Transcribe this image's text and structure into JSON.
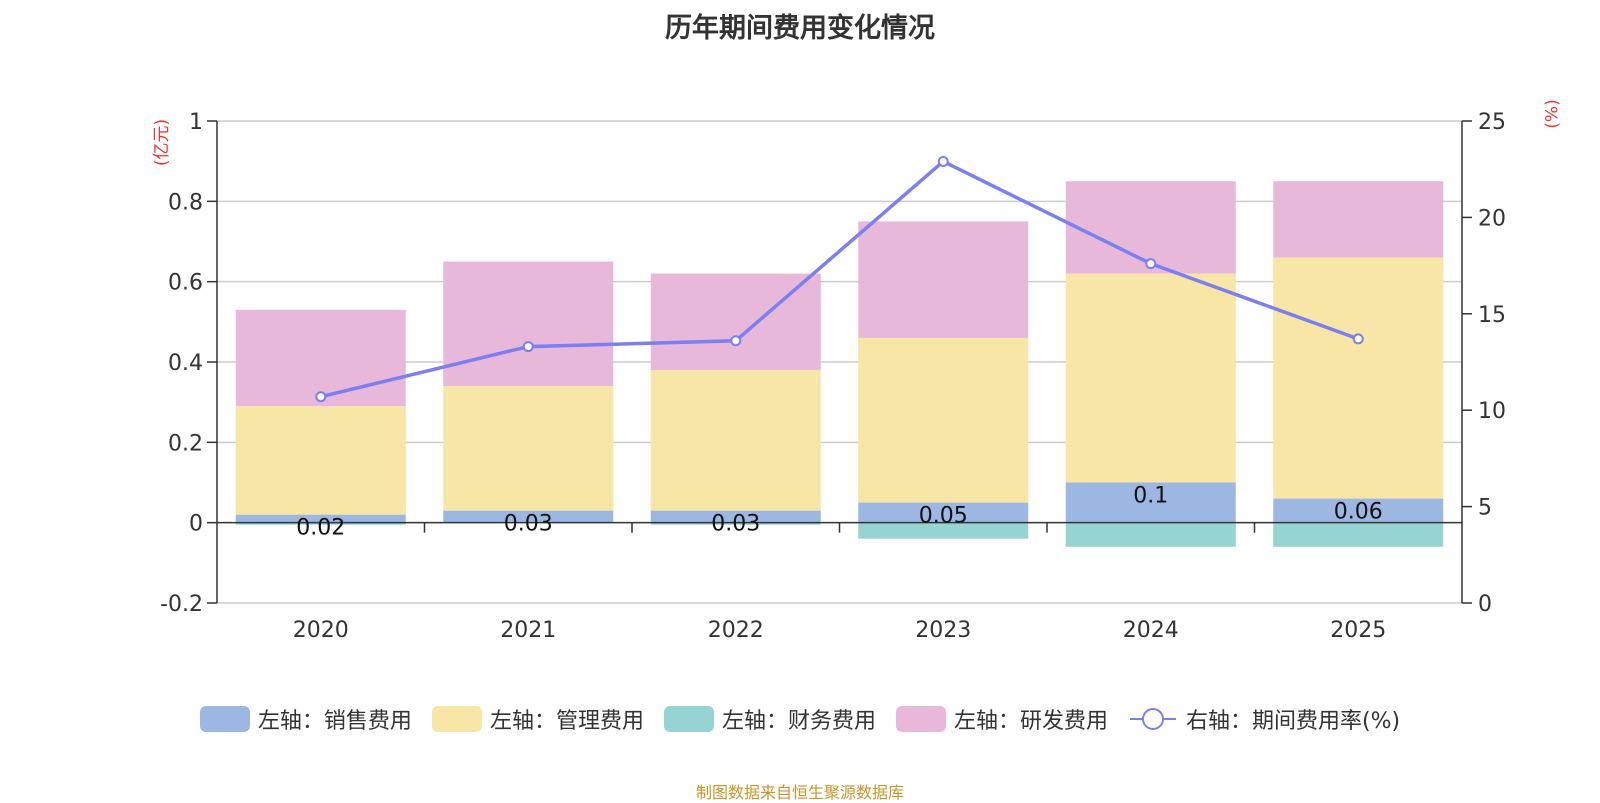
{
  "chart_data": {
    "type": "bar",
    "stacked": true,
    "title": "历年期间费用变化情况",
    "categories": [
      "2020",
      "2021",
      "2022",
      "2023",
      "2024",
      "2025"
    ],
    "left_axis": {
      "unit": "(亿元)",
      "ylim": [
        -0.2,
        1
      ],
      "ticks": [
        "1",
        "0.8",
        "0.6",
        "0.4",
        "0.2",
        "0",
        "-0.2"
      ]
    },
    "right_axis": {
      "unit": "(%)",
      "ylim": [
        0,
        25
      ],
      "ticks": [
        "25",
        "20",
        "15",
        "10",
        "5",
        "0"
      ]
    },
    "series": [
      {
        "name": "左轴：销售费用",
        "color": "#9db7e3",
        "values": [
          0.02,
          0.03,
          0.03,
          0.05,
          0.1,
          0.06
        ],
        "labels": [
          "0.02",
          "0.03",
          "0.03",
          "0.05",
          "0.1",
          "0.06"
        ]
      },
      {
        "name": "左轴：管理费用",
        "color": "#f7e6a6",
        "values": [
          0.27,
          0.31,
          0.35,
          0.41,
          0.52,
          0.6
        ]
      },
      {
        "name": "左轴：财务费用",
        "color": "#96d4d4",
        "values": [
          -0.005,
          0,
          -0.005,
          -0.04,
          -0.06,
          -0.06
        ]
      },
      {
        "name": "左轴：研发费用",
        "color": "#e7b8da",
        "values": [
          0.24,
          0.31,
          0.24,
          0.29,
          0.23,
          0.19
        ]
      }
    ],
    "line": {
      "name": "右轴：期间费用率(%)",
      "color": "#7b7ff0",
      "values": [
        10.7,
        13.3,
        13.6,
        22.9,
        17.6,
        13.7
      ]
    }
  },
  "source_note": "制图数据来自恒生聚源数据库"
}
